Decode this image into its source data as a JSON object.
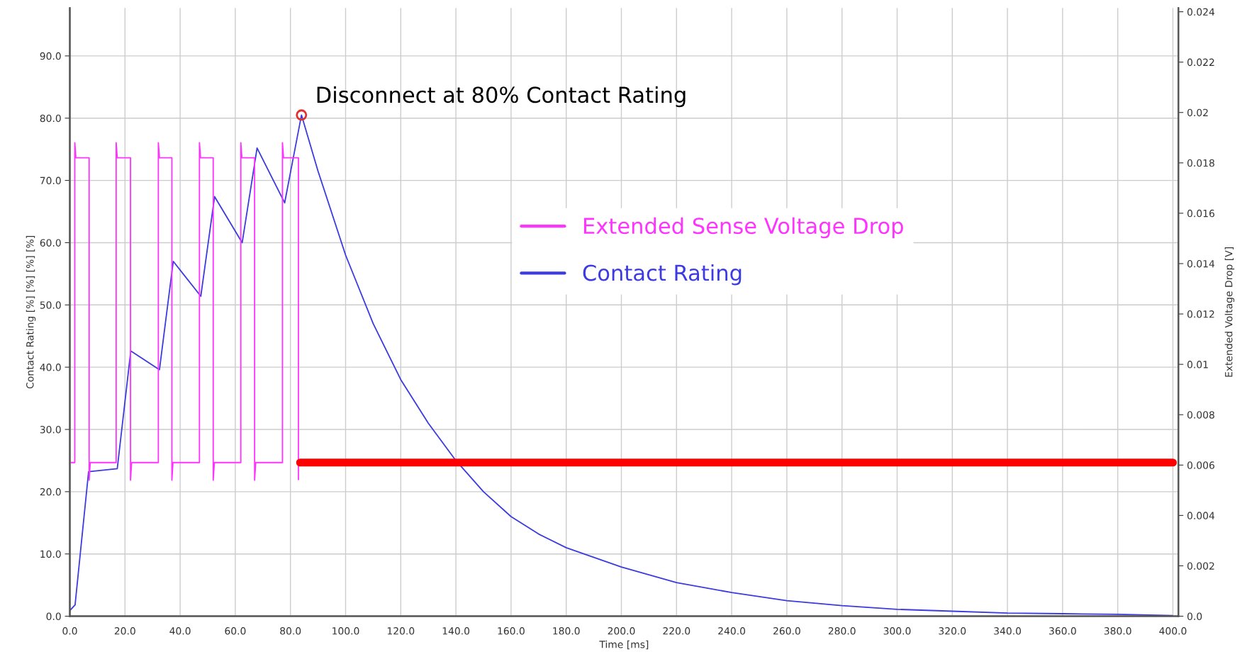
{
  "chart_data": {
    "type": "line",
    "xlabel": "Time [ms]",
    "ylabel": "Contact Rating [%] [%] [%] [%]",
    "y2label": "Extended Voltage Drop [V]",
    "xlim": [
      0,
      402
    ],
    "ylim": [
      0,
      97.7
    ],
    "y2lim": [
      0,
      0.02415
    ],
    "xticks": [
      {
        "value": 0,
        "label": "0.0"
      },
      {
        "value": 20,
        "label": "20.0"
      },
      {
        "value": 40,
        "label": "40.0"
      },
      {
        "value": 60,
        "label": "60.0"
      },
      {
        "value": 80,
        "label": "80.0"
      },
      {
        "value": 100,
        "label": "100.0"
      },
      {
        "value": 120,
        "label": "120.0"
      },
      {
        "value": 140,
        "label": "140.0"
      },
      {
        "value": 160,
        "label": "160.0"
      },
      {
        "value": 180,
        "label": "180.0"
      },
      {
        "value": 200,
        "label": "200.0"
      },
      {
        "value": 220,
        "label": "220.0"
      },
      {
        "value": 240,
        "label": "240.0"
      },
      {
        "value": 260,
        "label": "260.0"
      },
      {
        "value": 280,
        "label": "280.0"
      },
      {
        "value": 300,
        "label": "300.0"
      },
      {
        "value": 320,
        "label": "320.0"
      },
      {
        "value": 340,
        "label": "340.0"
      },
      {
        "value": 360,
        "label": "360.0"
      },
      {
        "value": 380,
        "label": "380.0"
      },
      {
        "value": 400,
        "label": "400.0"
      }
    ],
    "yticks": [
      {
        "value": 0,
        "label": "0.0"
      },
      {
        "value": 10,
        "label": "10.0"
      },
      {
        "value": 20,
        "label": "20.0"
      },
      {
        "value": 30,
        "label": "30.0"
      },
      {
        "value": 40,
        "label": "40.0"
      },
      {
        "value": 50,
        "label": "50.0"
      },
      {
        "value": 60,
        "label": "60.0"
      },
      {
        "value": 70,
        "label": "70.0"
      },
      {
        "value": 80,
        "label": "80.0"
      },
      {
        "value": 90,
        "label": "90.0"
      }
    ],
    "y2ticks": [
      {
        "value": 0,
        "label": "0.0"
      },
      0.002,
      0.004,
      0.006,
      0.008,
      0.01,
      0.012,
      0.014,
      0.016,
      0.018,
      0.02,
      0.022,
      0.024
    ],
    "grid": true,
    "legend": "center",
    "series": [
      {
        "name": "Extended Sense Voltage Drop",
        "color": "#ff33ff",
        "axis": "y2",
        "x": [
          0,
          1.8,
          1.8,
          2.2,
          7.0,
          7.0,
          7.4,
          16.8,
          16.8,
          17.2,
          22.0,
          22.0,
          22.4,
          32.1,
          32.1,
          32.5,
          37.0,
          37.0,
          37.4,
          47.0,
          47.0,
          47.4,
          52.0,
          52.0,
          52.4,
          62.0,
          62.0,
          62.4,
          67.0,
          67.0,
          67.4,
          77.1,
          77.1,
          77.5,
          82.9,
          82.9
        ],
        "values": [
          0.0061,
          0.0061,
          0.0188,
          0.0182,
          0.0182,
          0.0054,
          0.0061,
          0.0061,
          0.0188,
          0.0182,
          0.0182,
          0.0054,
          0.0061,
          0.0061,
          0.0188,
          0.0182,
          0.0182,
          0.0054,
          0.0061,
          0.0061,
          0.0188,
          0.0182,
          0.0182,
          0.0054,
          0.0061,
          0.0061,
          0.0188,
          0.0182,
          0.0182,
          0.0054,
          0.0061,
          0.0061,
          0.0188,
          0.0182,
          0.0182,
          0.0054
        ]
      },
      {
        "name": "Contact Rating",
        "color": "#3b3be0",
        "x": [
          0,
          1.9,
          6.8,
          17.2,
          22.1,
          32.5,
          37.5,
          47.5,
          52.5,
          62.5,
          67.9,
          77.9,
          84.0,
          90,
          100,
          110,
          120,
          130,
          140,
          150,
          160,
          170,
          180,
          200,
          220,
          240,
          260,
          280,
          300,
          320,
          340,
          360,
          380,
          400
        ],
        "values": [
          0.9,
          1.8,
          23.2,
          23.7,
          42.6,
          39.6,
          57.0,
          51.4,
          67.4,
          60.0,
          75.2,
          66.4,
          80.5,
          71.5,
          58,
          47,
          38,
          31,
          25,
          20,
          16,
          13.2,
          11,
          7.9,
          5.4,
          3.8,
          2.5,
          1.7,
          1.1,
          0.8,
          0.5,
          0.4,
          0.3,
          0.1
        ]
      },
      {
        "color": "#ff0000",
        "axis": "y2",
        "x": [
          83.5,
          400
        ],
        "values": [
          0.0061,
          0.0061
        ]
      },
      {
        "type": "scatter",
        "color": "#e03030",
        "marker": "circle",
        "x": [
          84.0
        ],
        "values": [
          80.5
        ]
      }
    ],
    "annotations": [
      {
        "text": "Disconnect at 80% Contact Rating",
        "x": 84.0,
        "y": 80.5
      }
    ]
  }
}
